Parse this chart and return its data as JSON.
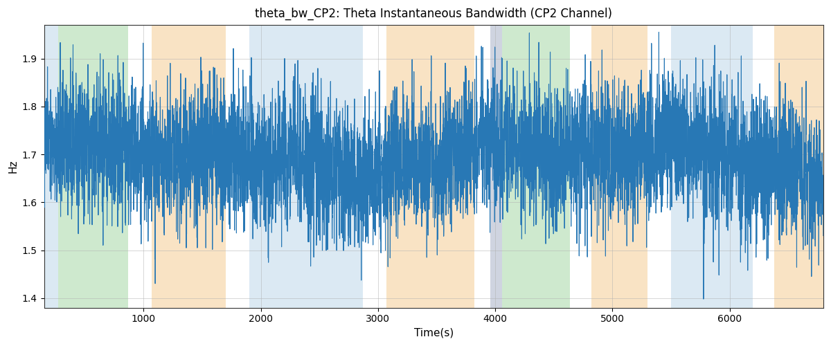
{
  "title": "theta_bw_CP2: Theta Instantaneous Bandwidth (CP2 Channel)",
  "xlabel": "Time(s)",
  "ylabel": "Hz",
  "ylim": [
    1.38,
    1.97
  ],
  "xlim": [
    150,
    6800
  ],
  "line_color": "#2878b5",
  "line_width": 0.8,
  "background_color": "#ffffff",
  "grid_color": "#b0b0b0",
  "bands": [
    {
      "xmin": 150,
      "xmax": 270,
      "color": "#b8d4e8",
      "alpha": 0.5
    },
    {
      "xmin": 270,
      "xmax": 870,
      "color": "#9ed49e",
      "alpha": 0.5
    },
    {
      "xmin": 1070,
      "xmax": 1700,
      "color": "#f5c98a",
      "alpha": 0.5
    },
    {
      "xmin": 1900,
      "xmax": 2870,
      "color": "#b8d4e8",
      "alpha": 0.5
    },
    {
      "xmin": 3070,
      "xmax": 3820,
      "color": "#f5c98a",
      "alpha": 0.5
    },
    {
      "xmin": 3960,
      "xmax": 4060,
      "color": "#b0b8cc",
      "alpha": 0.6
    },
    {
      "xmin": 4060,
      "xmax": 4640,
      "color": "#9ed49e",
      "alpha": 0.5
    },
    {
      "xmin": 4820,
      "xmax": 5300,
      "color": "#f5c98a",
      "alpha": 0.5
    },
    {
      "xmin": 5500,
      "xmax": 6200,
      "color": "#b8d4e8",
      "alpha": 0.5
    },
    {
      "xmin": 6380,
      "xmax": 6800,
      "color": "#f5c98a",
      "alpha": 0.5
    }
  ],
  "seed": 42,
  "n_points": 6650,
  "t_start": 150,
  "t_end": 6800,
  "mean": 1.695,
  "std": 0.072
}
